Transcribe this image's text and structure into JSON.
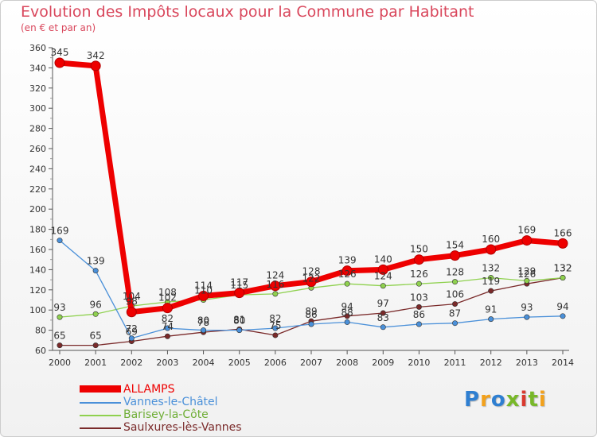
{
  "page": {
    "title": "Evolution des Impôts locaux pour la Commune par Habitant",
    "subtitle": "(en € et par an)",
    "logo": "Proxiti"
  },
  "chart_data": {
    "type": "line",
    "title": "Evolution des Impôts locaux pour la Commune par Habitant",
    "subtitle": "(en € et par an)",
    "x": [
      2000,
      2001,
      2002,
      2003,
      2004,
      2005,
      2006,
      2007,
      2008,
      2009,
      2010,
      2011,
      2012,
      2013,
      2014
    ],
    "ylim": [
      60,
      360
    ],
    "yticks": [
      60,
      80,
      100,
      120,
      140,
      160,
      180,
      200,
      220,
      240,
      260,
      280,
      300,
      320,
      340,
      360
    ],
    "grid": false,
    "legend": "bottom-left",
    "series": [
      {
        "name": "ALLAMPS",
        "color": "#ee0000",
        "values": [
          345,
          342,
          98,
          102,
          114,
          117,
          124,
          128,
          139,
          140,
          150,
          154,
          160,
          169,
          166
        ],
        "labels": [
          "345",
          "342",
          "98",
          "102",
          "114",
          "117",
          "124",
          "128",
          "139",
          "140",
          "150",
          "154",
          "160",
          "169",
          "166"
        ]
      },
      {
        "name": "Vannes-le-Châtel",
        "color": "#4a90d9",
        "values": [
          169,
          139,
          72,
          82,
          80,
          80,
          82,
          86,
          88,
          83,
          86,
          87,
          91,
          93,
          94
        ],
        "labels": [
          "169",
          "139",
          "72",
          "82",
          "80",
          "80",
          "82",
          "86",
          "88",
          "83",
          "86",
          "87",
          "91",
          "93",
          "94"
        ]
      },
      {
        "name": "Barisey-la-Côte",
        "color": "#8fd14f",
        "values": [
          93,
          96,
          104,
          108,
          110,
          115,
          116,
          122,
          126,
          124,
          126,
          128,
          132,
          129,
          132
        ],
        "labels": [
          "93",
          "96",
          "104",
          "108",
          "110",
          "115",
          "116",
          "122",
          "126",
          "124",
          "126",
          "128",
          "132",
          "129",
          "132"
        ]
      },
      {
        "name": "Saulxures-lès-Vannes",
        "color": "#7a2a2a",
        "values": [
          65,
          65,
          69,
          74,
          78,
          81,
          75,
          89,
          94,
          97,
          103,
          106,
          119,
          126,
          132
        ],
        "labels": [
          "65",
          "65",
          "69",
          "74",
          "78",
          "81",
          "75",
          "89",
          "94",
          "97",
          "103",
          "106",
          "119",
          "126",
          "132"
        ]
      }
    ]
  }
}
